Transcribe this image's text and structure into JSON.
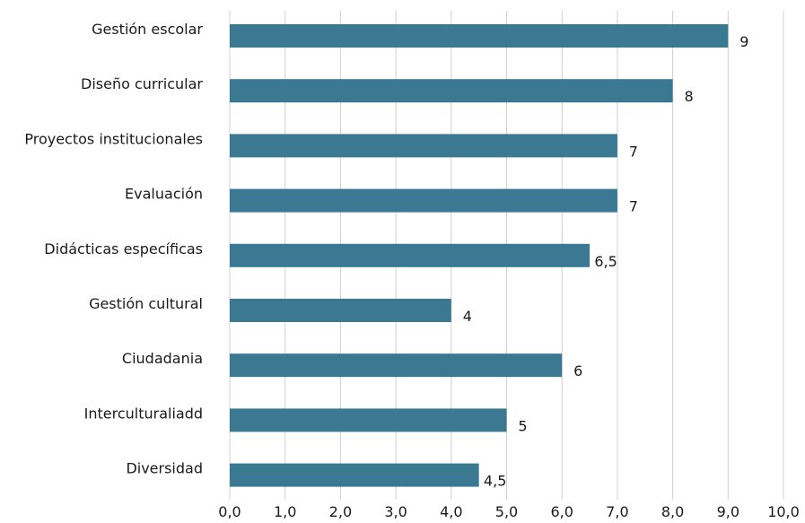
{
  "chart_data": {
    "type": "bar",
    "orientation": "horizontal",
    "categories": [
      "Gestión escolar",
      "Diseño curricular",
      "Proyectos institucionales ",
      "Evaluación",
      "Didácticas específicas ",
      "Gestión cultural",
      "Ciudadania",
      "Interculturaliadd",
      "Diversidad"
    ],
    "values": [
      9,
      8,
      7,
      7,
      6.5,
      4,
      6,
      5,
      4.5
    ],
    "data_labels": [
      "9",
      "8",
      "7",
      "7",
      "6,5",
      "4",
      "6",
      "5",
      "4,5"
    ],
    "xlim": [
      0,
      10
    ],
    "x_ticks": [
      "0,0",
      "1,0",
      "2,0",
      "3,0",
      "4,0",
      "5,0",
      "6,0",
      "7,0",
      "8,0",
      "9,0",
      "10,0"
    ],
    "grid": true,
    "legend": "none",
    "colors": {
      "bar": "#3b7891"
    },
    "title": "",
    "xlabel": "",
    "ylabel": ""
  }
}
